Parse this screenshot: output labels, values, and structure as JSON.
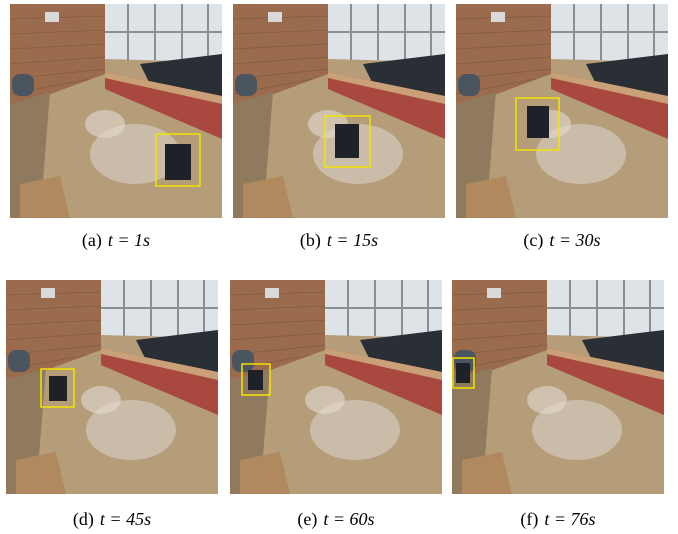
{
  "figure": {
    "panels": [
      {
        "label": "(a)",
        "equation": "t = 1s"
      },
      {
        "label": "(b)",
        "equation": "t = 15s"
      },
      {
        "label": "(c)",
        "equation": "t = 30s"
      },
      {
        "label": "(d)",
        "equation": "t = 45s"
      },
      {
        "label": "(e)",
        "equation": "t = 60s"
      },
      {
        "label": "(f)",
        "equation": "t = 76s"
      }
    ]
  }
}
